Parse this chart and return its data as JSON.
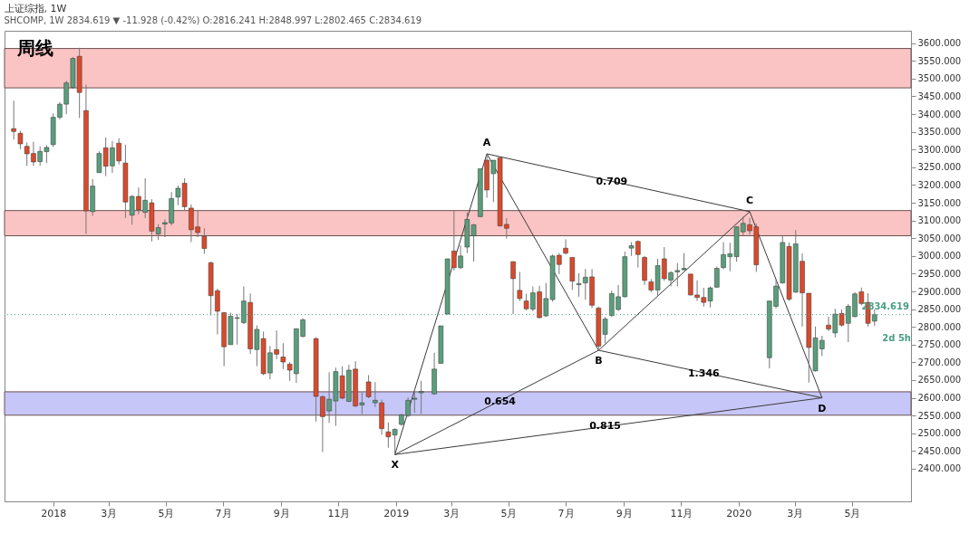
{
  "chart_data": {
    "type": "candlestick",
    "title": "上证综指, 1W",
    "subtitle": "SHCOMP, 1W 2834.619 ▼ -11.928 (-0.42%) O:2816.241 H:2848.997 L:2802.465 C:2834.619",
    "x": [
      "2017-11-20",
      "2017-11-27",
      "2017-12-04",
      "2017-12-11",
      "2017-12-18",
      "2017-12-25",
      "2018-01-01",
      "2018-01-08",
      "2018-01-15",
      "2018-01-22",
      "2018-01-29",
      "2018-02-05",
      "2018-02-12",
      "2018-02-19",
      "2018-02-26",
      "2018-03-05",
      "2018-03-12",
      "2018-03-19",
      "2018-03-26",
      "2018-04-02",
      "2018-04-09",
      "2018-04-16",
      "2018-04-23",
      "2018-04-30",
      "2018-05-07",
      "2018-05-14",
      "2018-05-21",
      "2018-05-28",
      "2018-06-04",
      "2018-06-11",
      "2018-06-18",
      "2018-06-25",
      "2018-07-02",
      "2018-07-09",
      "2018-07-16",
      "2018-07-23",
      "2018-07-30",
      "2018-08-06",
      "2018-08-13",
      "2018-08-20",
      "2018-08-27",
      "2018-09-03",
      "2018-09-10",
      "2018-09-17",
      "2018-09-24",
      "2018-10-08",
      "2018-10-15",
      "2018-10-22",
      "2018-10-29",
      "2018-11-05",
      "2018-11-12",
      "2018-11-19",
      "2018-11-26",
      "2018-12-03",
      "2018-12-10",
      "2018-12-17",
      "2018-12-24",
      "2018-12-31",
      "2019-01-07",
      "2019-01-14",
      "2019-01-21",
      "2019-01-28",
      "2019-02-11",
      "2019-02-18",
      "2019-02-25",
      "2019-03-04",
      "2019-03-11",
      "2019-03-18",
      "2019-03-25",
      "2019-04-01",
      "2019-04-08",
      "2019-04-15",
      "2019-04-22",
      "2019-04-29",
      "2019-05-06",
      "2019-05-13",
      "2019-05-20",
      "2019-05-27",
      "2019-06-03",
      "2019-06-10",
      "2019-06-17",
      "2019-06-24",
      "2019-07-01",
      "2019-07-08",
      "2019-07-15",
      "2019-07-22",
      "2019-07-29",
      "2019-08-05",
      "2019-08-12",
      "2019-08-19",
      "2019-08-26",
      "2019-09-02",
      "2019-09-09",
      "2019-09-16",
      "2019-09-23",
      "2019-09-30",
      "2019-10-07",
      "2019-10-14",
      "2019-10-21",
      "2019-10-28",
      "2019-11-04",
      "2019-11-11",
      "2019-11-18",
      "2019-11-25",
      "2019-12-02",
      "2019-12-09",
      "2019-12-16",
      "2019-12-23",
      "2019-12-30",
      "2020-01-06",
      "2020-01-13",
      "2020-01-20",
      "2020-02-03",
      "2020-02-10",
      "2020-02-17",
      "2020-02-24",
      "2020-03-02",
      "2020-03-09",
      "2020-03-16",
      "2020-03-23",
      "2020-03-30",
      "2020-04-06",
      "2020-04-13",
      "2020-04-20",
      "2020-04-27",
      "2020-05-04",
      "2020-05-11",
      "2020-05-18",
      "2020-05-25"
    ],
    "ohlc": [
      [
        3359,
        3438,
        3328,
        3351
      ],
      [
        3346,
        3353,
        3301,
        3316
      ],
      [
        3309,
        3320,
        3254,
        3288
      ],
      [
        3289,
        3322,
        3254,
        3265
      ],
      [
        3266,
        3309,
        3254,
        3295
      ],
      [
        3294,
        3312,
        3262,
        3306
      ],
      [
        3314,
        3402,
        3307,
        3391
      ],
      [
        3391,
        3434,
        3385,
        3428
      ],
      [
        3428,
        3494,
        3400,
        3488
      ],
      [
        3475,
        3561,
        3471,
        3557
      ],
      [
        3563,
        3587,
        3389,
        3461
      ],
      [
        3410,
        3483,
        3062,
        3127
      ],
      [
        3125,
        3217,
        3113,
        3197
      ],
      [
        3235,
        3295,
        3234,
        3289
      ],
      [
        3305,
        3334,
        3225,
        3253
      ],
      [
        3254,
        3324,
        3234,
        3305
      ],
      [
        3318,
        3332,
        3258,
        3268
      ],
      [
        3262,
        3314,
        3107,
        3152
      ],
      [
        3115,
        3172,
        3088,
        3168
      ],
      [
        3168,
        3193,
        3117,
        3130
      ],
      [
        3123,
        3219,
        3107,
        3157
      ],
      [
        3150,
        3160,
        3041,
        3070
      ],
      [
        3062,
        3090,
        3045,
        3080
      ],
      [
        3090,
        3103,
        3053,
        3094
      ],
      [
        3093,
        3180,
        3086,
        3162
      ],
      [
        3166,
        3199,
        3143,
        3191
      ],
      [
        3205,
        3219,
        3129,
        3139
      ],
      [
        3135,
        3145,
        3039,
        3074
      ],
      [
        3082,
        3127,
        3053,
        3066
      ],
      [
        3055,
        3078,
        3006,
        3021
      ],
      [
        2981,
        2984,
        2832,
        2888
      ],
      [
        2902,
        2908,
        2779,
        2844
      ],
      [
        2840,
        2842,
        2689,
        2744
      ],
      [
        2750,
        2840,
        2750,
        2830
      ],
      [
        2824,
        2836,
        2750,
        2826
      ],
      [
        2812,
        2914,
        2808,
        2873
      ],
      [
        2869,
        2894,
        2724,
        2738
      ],
      [
        2736,
        2804,
        2689,
        2793
      ],
      [
        2767,
        2787,
        2664,
        2668
      ],
      [
        2670,
        2746,
        2652,
        2727
      ],
      [
        2736,
        2790,
        2709,
        2723
      ],
      [
        2715,
        2754,
        2681,
        2701
      ],
      [
        2695,
        2701,
        2648,
        2678
      ],
      [
        2668,
        2795,
        2642,
        2795
      ],
      [
        2773,
        2824,
        2771,
        2820
      ],
      [
        2767,
        2771,
        2533,
        2604
      ],
      [
        2603,
        2607,
        2447,
        2547
      ],
      [
        2563,
        2672,
        2529,
        2596
      ],
      [
        2591,
        2685,
        2521,
        2674
      ],
      [
        2662,
        2689,
        2596,
        2599
      ],
      [
        2590,
        2693,
        2588,
        2678
      ],
      [
        2681,
        2703,
        2574,
        2577
      ],
      [
        2580,
        2615,
        2554,
        2586
      ],
      [
        2645,
        2664,
        2599,
        2603
      ],
      [
        2586,
        2644,
        2574,
        2593
      ],
      [
        2586,
        2595,
        2496,
        2513
      ],
      [
        2504,
        2531,
        2459,
        2490
      ],
      [
        2495,
        2514,
        2440,
        2511
      ],
      [
        2525,
        2555,
        2521,
        2552
      ],
      [
        2550,
        2601,
        2546,
        2593
      ],
      [
        2596,
        2627,
        2558,
        2599
      ],
      [
        2614,
        2648,
        2555,
        2618
      ],
      [
        2611,
        2727,
        2609,
        2681
      ],
      [
        2697,
        2803,
        2697,
        2803
      ],
      [
        2836,
        2992,
        2836,
        2992
      ],
      [
        3014,
        3127,
        2959,
        2967
      ],
      [
        2967,
        3030,
        2963,
        3000
      ],
      [
        3025,
        3123,
        3008,
        3103
      ],
      [
        3057,
        3090,
        2984,
        3088
      ],
      [
        3111,
        3246,
        3109,
        3246
      ],
      [
        3270,
        3288,
        3164,
        3186
      ],
      [
        3232,
        3270,
        3152,
        3270
      ],
      [
        3277,
        3277,
        3082,
        3085
      ],
      [
        3089,
        3107,
        3049,
        3078
      ],
      [
        2984,
        2984,
        2836,
        2936
      ],
      [
        2903,
        2955,
        2873,
        2880
      ],
      [
        2873,
        2894,
        2847,
        2851
      ],
      [
        2850,
        2914,
        2844,
        2896
      ],
      [
        2899,
        2916,
        2824,
        2826
      ],
      [
        2831,
        2924,
        2828,
        2880
      ],
      [
        2877,
        3004,
        2871,
        3000
      ],
      [
        3002,
        3008,
        2949,
        2976
      ],
      [
        3022,
        3047,
        3004,
        3008
      ],
      [
        2996,
        2996,
        2904,
        2929
      ],
      [
        2919,
        2951,
        2885,
        2922
      ],
      [
        2924,
        2963,
        2877,
        2940
      ],
      [
        2941,
        2963,
        2853,
        2861
      ],
      [
        2853,
        2857,
        2738,
        2746
      ],
      [
        2779,
        2828,
        2754,
        2822
      ],
      [
        2832,
        2902,
        2828,
        2894
      ],
      [
        2849,
        2918,
        2845,
        2885
      ],
      [
        2885,
        3012,
        2883,
        2998
      ],
      [
        3022,
        3039,
        3000,
        3029
      ],
      [
        3041,
        3044,
        2967,
        3004
      ],
      [
        2996,
        3000,
        2918,
        2931
      ],
      [
        2927,
        2935,
        2898,
        2904
      ],
      [
        2904,
        2992,
        2888,
        2973
      ],
      [
        2992,
        3025,
        2930,
        2936
      ],
      [
        2932,
        2957,
        2914,
        2953
      ],
      [
        2955,
        2980,
        2914,
        2959
      ],
      [
        2961,
        3008,
        2959,
        2965
      ],
      [
        2949,
        2949,
        2888,
        2890
      ],
      [
        2890,
        2931,
        2873,
        2883
      ],
      [
        2883,
        2910,
        2857,
        2869
      ],
      [
        2873,
        2914,
        2855,
        2910
      ],
      [
        2912,
        2970,
        2910,
        2965
      ],
      [
        2967,
        3039,
        2963,
        3004
      ],
      [
        2998,
        3037,
        2957,
        3006
      ],
      [
        2998,
        3084,
        2984,
        3082
      ],
      [
        3068,
        3111,
        3058,
        3092
      ],
      [
        3088,
        3107,
        3060,
        3071
      ],
      [
        3082,
        3091,
        2955,
        2975
      ],
      [
        2713,
        2873,
        2683,
        2873
      ],
      [
        2858,
        2933,
        2852,
        2915
      ],
      [
        2924,
        3056,
        2922,
        3038
      ],
      [
        3027,
        3038,
        2873,
        2878
      ],
      [
        2898,
        3073,
        2896,
        3034
      ],
      [
        2985,
        3007,
        2801,
        2896
      ],
      [
        2895,
        2895,
        2643,
        2742
      ],
      [
        2676,
        2801,
        2674,
        2769
      ],
      [
        2738,
        2775,
        2718,
        2762
      ],
      [
        2805,
        2829,
        2788,
        2794
      ],
      [
        2783,
        2851,
        2770,
        2836
      ],
      [
        2838,
        2849,
        2801,
        2805
      ],
      [
        2810,
        2864,
        2757,
        2858
      ],
      [
        2829,
        2898,
        2827,
        2893
      ],
      [
        2899,
        2911,
        2861,
        2866
      ],
      [
        2869,
        2895,
        2801,
        2810
      ],
      [
        2816.241,
        2848.997,
        2802.465,
        2834.619
      ]
    ],
    "colors": [
      "#d94a2c",
      "#d94a2c",
      "#d94a2c",
      "#d94a2c",
      "#5a9e7c",
      "#5a9e7c",
      "#5a9e7c",
      "#5a9e7c",
      "#5a9e7c",
      "#5a9e7c",
      "#d94a2c",
      "#d94a2c",
      "#5a9e7c",
      "#5a9e7c",
      "#d94a2c",
      "#5a9e7c",
      "#d94a2c",
      "#d94a2c",
      "#5a9e7c",
      "#d94a2c",
      "#5a9e7c",
      "#d94a2c",
      "#5a9e7c",
      "#5a9e7c",
      "#5a9e7c",
      "#5a9e7c",
      "#d94a2c",
      "#d94a2c",
      "#d94a2c",
      "#d94a2c",
      "#d94a2c",
      "#d94a2c",
      "#d94a2c",
      "#5a9e7c",
      "#5a9e7c",
      "#5a9e7c",
      "#d94a2c",
      "#5a9e7c",
      "#d94a2c",
      "#5a9e7c",
      "#d94a2c",
      "#d94a2c",
      "#d94a2c",
      "#5a9e7c",
      "#5a9e7c",
      "#d94a2c",
      "#d94a2c",
      "#5a9e7c",
      "#5a9e7c",
      "#d94a2c",
      "#5a9e7c",
      "#d94a2c",
      "#5a9e7c",
      "#d94a2c",
      "#5a9e7c",
      "#d94a2c",
      "#d94a2c",
      "#5a9e7c",
      "#5a9e7c",
      "#5a9e7c",
      "#5a9e7c",
      "#5a9e7c",
      "#5a9e7c",
      "#5a9e7c",
      "#5a9e7c",
      "#d94a2c",
      "#5a9e7c",
      "#5a9e7c",
      "#5a9e7c",
      "#5a9e7c",
      "#d94a2c",
      "#5a9e7c",
      "#d94a2c",
      "#d94a2c",
      "#d94a2c",
      "#d94a2c",
      "#d94a2c",
      "#5a9e7c",
      "#d94a2c",
      "#5a9e7c",
      "#5a9e7c",
      "#d94a2c",
      "#d94a2c",
      "#d94a2c",
      "#5a9e7c",
      "#5a9e7c",
      "#d94a2c",
      "#d94a2c",
      "#5a9e7c",
      "#5a9e7c",
      "#5a9e7c",
      "#5a9e7c",
      "#5a9e7c",
      "#d94a2c",
      "#d94a2c",
      "#d94a2c",
      "#5a9e7c",
      "#d94a2c",
      "#5a9e7c",
      "#5a9e7c",
      "#5a9e7c",
      "#d94a2c",
      "#d94a2c",
      "#d94a2c",
      "#5a9e7c",
      "#5a9e7c",
      "#5a9e7c",
      "#5a9e7c",
      "#5a9e7c",
      "#5a9e7c",
      "#d94a2c",
      "#d94a2c",
      "#5a9e7c",
      "#5a9e7c",
      "#5a9e7c",
      "#d94a2c",
      "#5a9e7c",
      "#d94a2c",
      "#d94a2c",
      "#5a9e7c",
      "#5a9e7c",
      "#d94a2c",
      "#5a9e7c",
      "#d94a2c",
      "#5a9e7c",
      "#5a9e7c",
      "#d94a2c",
      "#d94a2c",
      "#5a9e7c"
    ],
    "series": [
      {
        "type": "line",
        "color": "#3a3a3a",
        "x": [
          "2018-12-31",
          "2019-04-08",
          "2019-08-05",
          "2020-01-13",
          "2020-03-30"
        ],
        "values": [
          2440,
          3288,
          2734,
          3125,
          2600
        ]
      },
      {
        "type": "line",
        "color": "#3a3a3a",
        "x": [
          "2018-12-31",
          "2019-08-05"
        ],
        "values": [
          2440,
          2734
        ]
      },
      {
        "type": "line",
        "color": "#3a3a3a",
        "x": [
          "2019-04-08",
          "2020-01-13"
        ],
        "values": [
          3288,
          3125
        ]
      },
      {
        "type": "line",
        "color": "#3a3a3a",
        "x": [
          "2019-08-05",
          "2020-03-30"
        ],
        "values": [
          2734,
          2600
        ]
      },
      {
        "type": "line",
        "color": "#3a3a3a",
        "x": [
          "2018-12-31",
          "2020-03-30"
        ],
        "values": [
          2440,
          2600
        ]
      }
    ],
    "bands": [
      {
        "axis": "y",
        "from": 3474,
        "to": 3585,
        "color": "#fbc4c4"
      },
      {
        "axis": "y",
        "from": 3057,
        "to": 3128,
        "color": "#fbc4c4"
      },
      {
        "axis": "y",
        "from": 2551,
        "to": 2617,
        "color": "#c6c6f8"
      }
    ],
    "ref_lines": [
      {
        "axis": "y",
        "value": 2834.619,
        "label": "2834.619",
        "color": "#4a9e86",
        "line_style": "dotted"
      }
    ],
    "annotations": [
      "周线",
      "2d 5h",
      {
        "text": "X",
        "x": "2018-12-31",
        "y": 2440
      },
      {
        "text": "A",
        "x": "2019-04-08",
        "y": 3288
      },
      {
        "text": "B",
        "x": "2019-08-05",
        "y": 2734
      },
      {
        "text": "C",
        "x": "2020-01-13",
        "y": 3125
      },
      {
        "text": "D",
        "x": "2020-03-30",
        "y": 2600
      },
      {
        "text": "0.709",
        "x": "2019-08-19",
        "y": 3210
      },
      {
        "text": "0.654",
        "x": "2019-04-22",
        "y": 2589
      },
      {
        "text": "1.346",
        "x": "2019-11-25",
        "y": 2667
      },
      {
        "text": "0.815",
        "x": "2019-08-12",
        "y": 2521
      }
    ],
    "xlim": [
      "2017-11-15",
      "2020-06-28"
    ],
    "xticks": [
      {
        "value": "2018-01-01",
        "label": "2018"
      },
      {
        "value": "2018-03-01",
        "label": "3月"
      },
      {
        "value": "2018-05-01",
        "label": "5月"
      },
      {
        "value": "2018-07-01",
        "label": "7月"
      },
      {
        "value": "2018-09-01",
        "label": "9月"
      },
      {
        "value": "2018-11-01",
        "label": "11月"
      },
      {
        "value": "2019-01-01",
        "label": "2019"
      },
      {
        "value": "2019-03-01",
        "label": "3月"
      },
      {
        "value": "2019-05-01",
        "label": "5月"
      },
      {
        "value": "2019-07-01",
        "label": "7月"
      },
      {
        "value": "2019-09-01",
        "label": "9月"
      },
      {
        "value": "2019-11-01",
        "label": "11月"
      },
      {
        "value": "2020-01-01",
        "label": "2020"
      },
      {
        "value": "2020-03-01",
        "label": "3月"
      },
      {
        "value": "2020-05-01",
        "label": "5月"
      }
    ],
    "ylim": [
      2308,
      3635
    ],
    "yticks": [
      {
        "value": 2400,
        "label": "2400.000"
      },
      {
        "value": 2450,
        "label": "2450.000"
      },
      {
        "value": 2500,
        "label": "2500.000"
      },
      {
        "value": 2550,
        "label": "2550.000"
      },
      {
        "value": 2600,
        "label": "2600.000"
      },
      {
        "value": 2650,
        "label": "2650.000"
      },
      {
        "value": 2700,
        "label": "2700.000"
      },
      {
        "value": 2750,
        "label": "2750.000"
      },
      {
        "value": 2800,
        "label": "2800.000"
      },
      {
        "value": 2850,
        "label": "2850.000"
      },
      {
        "value": 2900,
        "label": "2900.000"
      },
      {
        "value": 2950,
        "label": "2950.000"
      },
      {
        "value": 3000,
        "label": "3000.000"
      },
      {
        "value": 3050,
        "label": "3050.000"
      },
      {
        "value": 3100,
        "label": "3100.000"
      },
      {
        "value": 3150,
        "label": "3150.000"
      },
      {
        "value": 3200,
        "label": "3200.000"
      },
      {
        "value": 3250,
        "label": "3250.000"
      },
      {
        "value": 3300,
        "label": "3300.000"
      },
      {
        "value": 3350,
        "label": "3350.000"
      },
      {
        "value": 3400,
        "label": "3400.000"
      },
      {
        "value": 3450,
        "label": "3450.000"
      },
      {
        "value": 3500,
        "label": "3500.000"
      },
      {
        "value": 3550,
        "label": "3550.000"
      },
      {
        "value": 3600,
        "label": "3600.000"
      }
    ]
  }
}
